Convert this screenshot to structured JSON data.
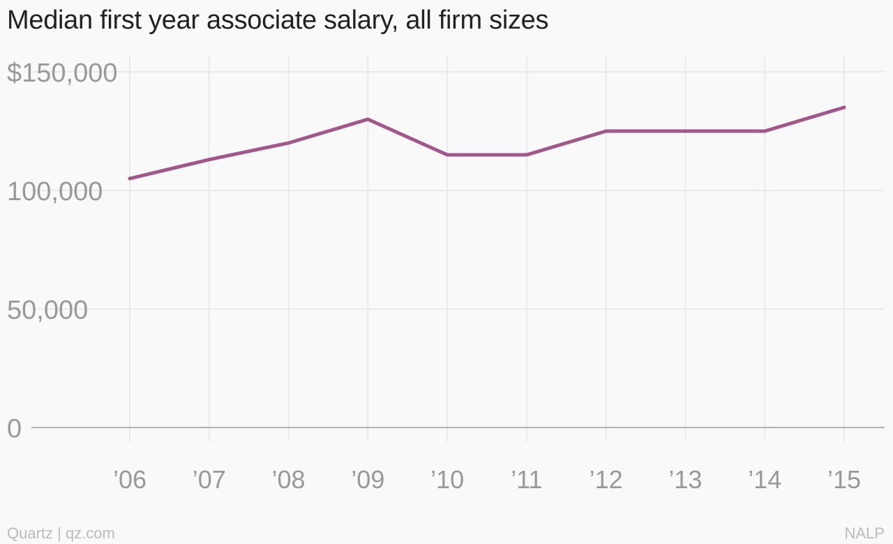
{
  "title": "Median first year associate salary, all firm sizes",
  "footer": {
    "credit": "Quartz | qz.com",
    "source": "NALP"
  },
  "colors": {
    "line": "#a1578b",
    "grid": "#e6e6e6",
    "axis": "#999999",
    "tick_text": "#999999"
  },
  "chart_data": {
    "type": "line",
    "title": "Median first year associate salary, all firm sizes",
    "x": [
      "’06",
      "’07",
      "’08",
      "’09",
      "’10",
      "’11",
      "’12",
      "’13",
      "’14",
      "’15"
    ],
    "series": [
      {
        "values": [
          105000,
          113000,
          120000,
          130000,
          115000,
          115000,
          125000,
          125000,
          125000,
          135000
        ]
      }
    ],
    "yticks": [
      0,
      50000,
      100000,
      150000
    ],
    "ytick_labels": [
      "0",
      "50,000",
      "100,000",
      "$150,000"
    ],
    "ylim": [
      0,
      150000
    ],
    "grid": true
  }
}
